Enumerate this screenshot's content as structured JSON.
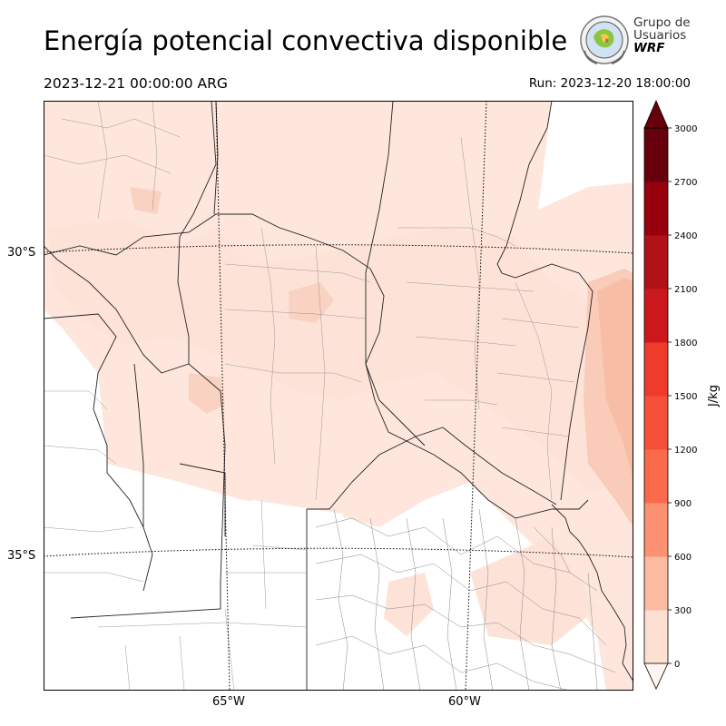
{
  "header": {
    "title": "Energía potencial convectiva disponible",
    "valid_time": "2023-12-21 00:00:00 ARG",
    "run_time": "Run: 2023-12-20 18:00:00"
  },
  "logo": {
    "line1": "Grupo de",
    "line2": "Usuarios",
    "line3": "WRF"
  },
  "map": {
    "lat_labels": [
      "30°S",
      "35°S"
    ],
    "lon_labels": [
      "65°W",
      "60°W"
    ]
  },
  "colorbar": {
    "unit": "J/kg",
    "ticks": [
      "0",
      "300",
      "600",
      "900",
      "1200",
      "1500",
      "1800",
      "2100",
      "2400",
      "2700",
      "3000"
    ],
    "colors": [
      "#fff5f0",
      "#fee0d2",
      "#fcbba1",
      "#fc9272",
      "#fb6a4a",
      "#f4503a",
      "#ef3b2c",
      "#cb181d",
      "#b11218",
      "#99000d",
      "#67000d"
    ]
  }
}
